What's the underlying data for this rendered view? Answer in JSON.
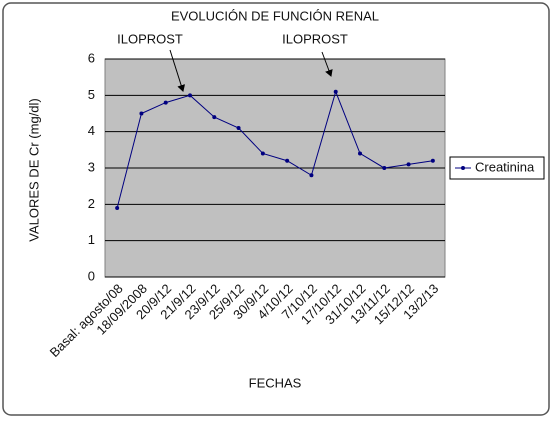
{
  "chart_data": {
    "type": "line",
    "title": "EVOLUCIÓN DE FUNCIÓN RENAL",
    "x_label": "FECHAS",
    "y_label": "VALORES DE Cr (mg/dl)",
    "categories": [
      "Basal: agosto/08",
      "18/09/2008",
      "20/9/12",
      "21/9/12",
      "23/9/12",
      "25/9/12",
      "30/9/12",
      "4/10/12",
      "7/10/12",
      "17/10/12",
      "31/10/12",
      "13/11/12",
      "15/12/12",
      "13/2/13"
    ],
    "series": [
      {
        "name": "Creatinina",
        "color": "#000080",
        "values": [
          1.9,
          4.5,
          4.8,
          5.0,
          4.4,
          4.1,
          3.4,
          3.2,
          2.8,
          5.1,
          3.4,
          3.0,
          3.1,
          3.2
        ]
      }
    ],
    "annotations": [
      "ILOPROST",
      "ILOPROST"
    ],
    "ylim": [
      0,
      6
    ],
    "yticks": [
      0,
      1,
      2,
      3,
      4,
      5,
      6
    ],
    "grid": true,
    "legend": "right"
  }
}
